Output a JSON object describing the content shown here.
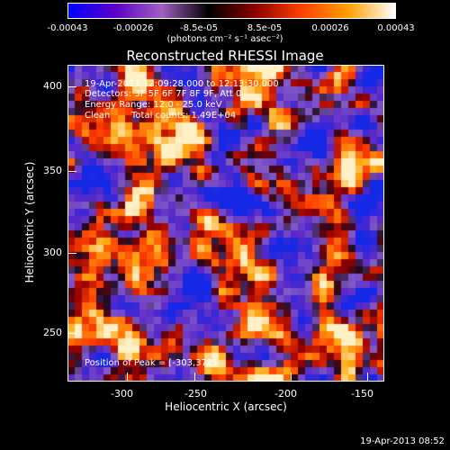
{
  "colorbar": {
    "ticks": [
      "-0.00043",
      "-0.00026",
      "-8.5e-05",
      "8.5e-05",
      "0.00026",
      "0.00043"
    ],
    "units": "(photons cm⁻² s⁻¹ asec⁻²)",
    "colors": [
      "#0000ff",
      "#5a00c8",
      "#a060c0",
      "#000000",
      "#8b0000",
      "#ff4000",
      "#ffa000",
      "#ffffff"
    ]
  },
  "title": "Reconstructed RHESSI Image",
  "annotations": {
    "time_range": "19-Apr-2013 12:09:28.000 to 12:13:30.000",
    "detectors": "Detectors: 3F 5F 6F 7F 8F 9F, Att 0",
    "energy": "Energy Range: 12.0 - 25.0 keV",
    "method": "Clean",
    "counts": "Total counts: 1.49E+04",
    "peak": "Position of Peak = [-303,372]"
  },
  "axes": {
    "xlabel": "Heliocentric X (arcsec)",
    "ylabel": "Heliocentric Y (arcsec)",
    "xrange": [
      -335,
      -143
    ],
    "yrange": [
      220,
      412
    ],
    "xticks": [
      "-300",
      "-250",
      "-200",
      "-150"
    ],
    "yticks": [
      "250",
      "300",
      "350",
      "400"
    ]
  },
  "timestamp": "19-Apr-2013 08:52"
}
